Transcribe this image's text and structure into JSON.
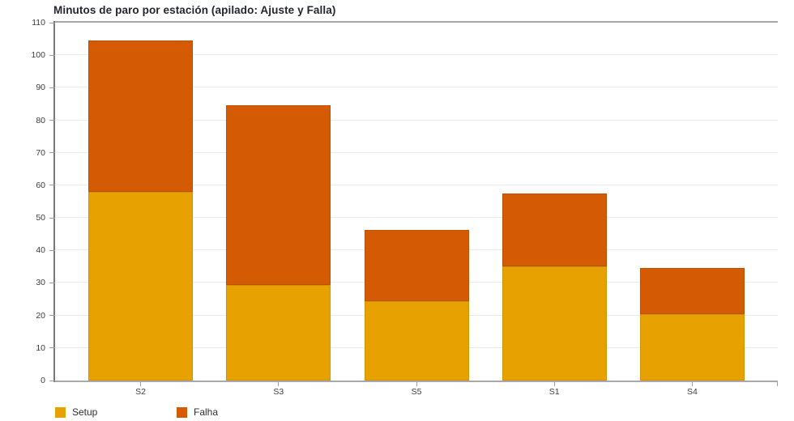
{
  "chart_data": {
    "type": "bar",
    "stacked": true,
    "title": "Minutos de paro por estación (apilado: Ajuste y Falla)",
    "categories": [
      "S2",
      "S3",
      "S5",
      "S1",
      "S4"
    ],
    "series": [
      {
        "name": "Setup",
        "color": "#e7a202",
        "border_color": "#d09102",
        "values": [
          58.0,
          29.4,
          24.4,
          35.1,
          20.5
        ]
      },
      {
        "name": "Falha",
        "color": "#d45a04",
        "border_color": "#bd5004",
        "values": [
          46.6,
          55.2,
          21.9,
          22.5,
          14.0
        ]
      }
    ],
    "totals": [
      104.6,
      84.6,
      46.3,
      57.6,
      34.5
    ],
    "xlabel": "",
    "ylabel": "",
    "ylim": [
      0,
      110
    ],
    "y_ticks": [
      0,
      10,
      20,
      30,
      40,
      50,
      60,
      70,
      80,
      90,
      100,
      110
    ],
    "grid": true,
    "legend": [
      "Setup",
      "Falha"
    ],
    "legend_position": "bottom-left"
  }
}
